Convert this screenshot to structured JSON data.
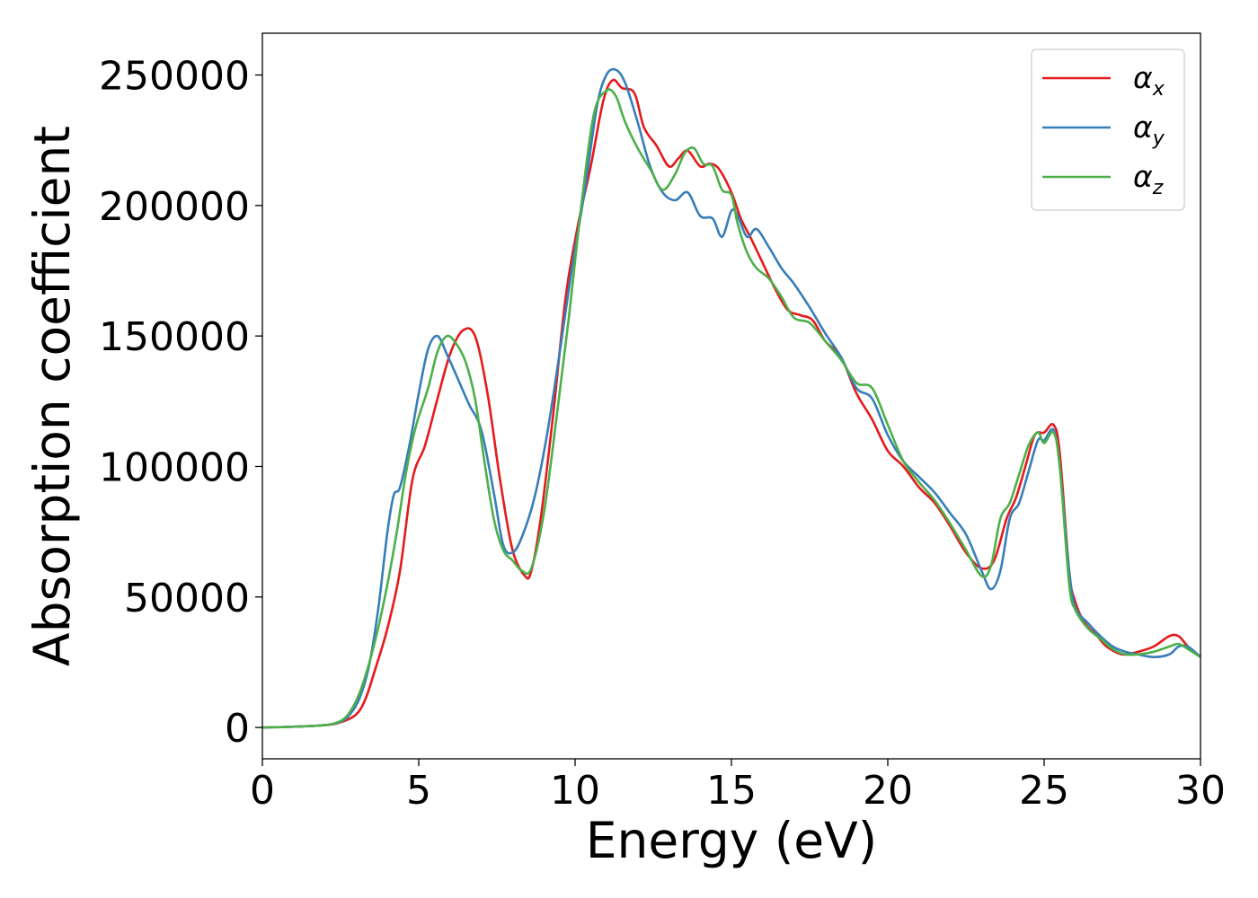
{
  "chart_data": {
    "type": "line",
    "xlabel": "Energy (eV)",
    "ylabel": "Absorption coefficient",
    "xlim": [
      0,
      30
    ],
    "ylim": [
      -12000,
      266000
    ],
    "xticks": [
      0,
      5,
      10,
      15,
      20,
      25,
      30
    ],
    "yticks": [
      0,
      50000,
      100000,
      150000,
      200000,
      250000
    ],
    "grid": false,
    "legend_position": "top-right",
    "series": [
      {
        "name": "αx",
        "symbol": "α",
        "subscript": "x",
        "color": "#e41a1c",
        "x": [
          0,
          1,
          2,
          2.5,
          3,
          3.3,
          3.6,
          4,
          4.4,
          4.8,
          5.2,
          5.6,
          6,
          6.4,
          6.8,
          7.2,
          7.6,
          8,
          8.4,
          8.6,
          8.9,
          9.3,
          9.7,
          10.1,
          10.5,
          10.9,
          11.2,
          11.5,
          11.9,
          12.2,
          12.6,
          13,
          13.3,
          13.6,
          14,
          14.3,
          14.6,
          15,
          15.3,
          15.6,
          16,
          16.4,
          16.8,
          17.2,
          17.6,
          18,
          18.5,
          19,
          19.5,
          20,
          20.5,
          21,
          21.5,
          22,
          22.5,
          23,
          23.4,
          23.8,
          24.1,
          24.4,
          24.7,
          25,
          25.3,
          25.5,
          25.8,
          26,
          26.3,
          26.7,
          27,
          27.5,
          28,
          28.5,
          29,
          29.3,
          29.6,
          30
        ],
        "y": [
          0,
          300,
          900,
          2000,
          5000,
          11000,
          22000,
          38000,
          60000,
          95000,
          108000,
          126000,
          143000,
          152000,
          150000,
          128000,
          95000,
          68000,
          58000,
          60000,
          80000,
          120000,
          165000,
          193000,
          215000,
          240000,
          248000,
          245000,
          243000,
          230000,
          223000,
          215000,
          218000,
          221000,
          215000,
          216000,
          214000,
          205000,
          195000,
          188000,
          178000,
          168000,
          160000,
          158000,
          156000,
          148000,
          142000,
          128000,
          118000,
          106000,
          100000,
          92000,
          86000,
          77000,
          67000,
          61000,
          64000,
          80000,
          88000,
          100000,
          112000,
          113000,
          116000,
          105000,
          60000,
          48000,
          40000,
          35000,
          31000,
          28000,
          29000,
          31000,
          35000,
          35000,
          31000,
          27000
        ]
      },
      {
        "name": "αy",
        "symbol": "α",
        "subscript": "y",
        "color": "#377eb8",
        "x": [
          0,
          1,
          2,
          2.5,
          2.8,
          3.1,
          3.4,
          3.7,
          4,
          4.2,
          4.4,
          4.7,
          5,
          5.3,
          5.6,
          5.9,
          6.2,
          6.6,
          7,
          7.4,
          7.7,
          8,
          8.3,
          8.7,
          9.1,
          9.5,
          9.9,
          10.3,
          10.7,
          11,
          11.3,
          11.6,
          12,
          12.4,
          12.8,
          13.2,
          13.6,
          14,
          14.4,
          14.7,
          15,
          15.2,
          15.5,
          15.8,
          16.2,
          16.6,
          17,
          17.5,
          18,
          18.5,
          19,
          19.5,
          20,
          20.5,
          21,
          21.5,
          22,
          22.5,
          23,
          23.3,
          23.6,
          23.9,
          24.2,
          24.5,
          24.8,
          25,
          25.3,
          25.5,
          25.8,
          26,
          26.4,
          26.8,
          27.2,
          27.6,
          28,
          28.5,
          29,
          29.3,
          29.6,
          30
        ],
        "y": [
          0,
          300,
          900,
          2200,
          5000,
          11000,
          23000,
          45000,
          75000,
          89000,
          92000,
          108000,
          128000,
          145000,
          150000,
          143000,
          135000,
          124000,
          114000,
          90000,
          70000,
          67000,
          73000,
          88000,
          112000,
          143000,
          176000,
          205000,
          238000,
          250000,
          252000,
          247000,
          232000,
          215000,
          205000,
          202000,
          205000,
          196000,
          195000,
          188000,
          198000,
          196000,
          188000,
          191000,
          184000,
          176000,
          170000,
          161000,
          151000,
          142000,
          130000,
          126000,
          112000,
          102000,
          96000,
          90000,
          82000,
          74000,
          60000,
          53000,
          60000,
          80000,
          86000,
          98000,
          110000,
          110000,
          114000,
          100000,
          60000,
          46000,
          40000,
          35000,
          31000,
          29000,
          28000,
          27000,
          28000,
          31000,
          31000,
          27000
        ]
      },
      {
        "name": "αz",
        "symbol": "α",
        "subscript": "z",
        "color": "#4daf4a",
        "x": [
          0,
          1,
          2,
          2.5,
          2.8,
          3.1,
          3.4,
          3.7,
          4,
          4.3,
          4.6,
          4.9,
          5.3,
          5.6,
          5.9,
          6.2,
          6.5,
          6.8,
          7.1,
          7.4,
          7.7,
          8,
          8.3,
          8.6,
          9,
          9.4,
          9.8,
          10.2,
          10.6,
          11,
          11.3,
          11.6,
          12,
          12.4,
          12.8,
          13.2,
          13.5,
          13.8,
          14.1,
          14.4,
          14.7,
          15,
          15.2,
          15.5,
          15.8,
          16.2,
          16.6,
          17,
          17.5,
          18,
          18.5,
          19,
          19.5,
          20,
          20.5,
          21,
          21.5,
          22,
          22.5,
          23,
          23.3,
          23.6,
          23.9,
          24.2,
          24.5,
          24.8,
          25,
          25.3,
          25.5,
          25.8,
          26,
          26.4,
          26.8,
          27.2,
          27.6,
          28,
          28.5,
          29,
          29.3,
          29.6,
          30
        ],
        "y": [
          0,
          300,
          900,
          2500,
          6000,
          13000,
          24000,
          38000,
          55000,
          75000,
          98000,
          115000,
          130000,
          144000,
          150000,
          147000,
          140000,
          126000,
          102000,
          80000,
          68000,
          64000,
          60000,
          61000,
          82000,
          118000,
          157000,
          200000,
          235000,
          244000,
          242000,
          232000,
          222000,
          214000,
          206000,
          212000,
          220000,
          222000,
          216000,
          215000,
          206000,
          204000,
          193000,
          182000,
          176000,
          172000,
          165000,
          157000,
          155000,
          148000,
          141000,
          132000,
          130000,
          116000,
          102000,
          94000,
          87000,
          78000,
          68000,
          58000,
          62000,
          80000,
          86000,
          97000,
          108000,
          113000,
          109000,
          113000,
          100000,
          55000,
          45000,
          38000,
          34000,
          30000,
          28000,
          28000,
          29000,
          31000,
          32000,
          30000,
          27000
        ]
      }
    ]
  }
}
